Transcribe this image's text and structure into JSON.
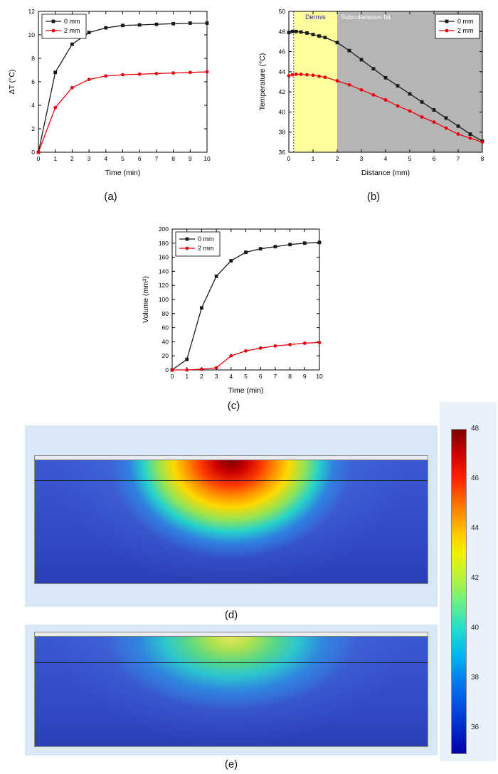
{
  "panel_labels": {
    "a": "(a)",
    "b": "(b)",
    "c": "(c)",
    "d": "(d)",
    "e": "(e)"
  },
  "colors": {
    "series_0mm": "#1a1a1a",
    "series_2mm": "#e8000d",
    "dermis_fill": "#ffff9e",
    "fat_fill": "#b5b5b5",
    "sim_background": "#d9e8f7"
  },
  "chart_data": [
    {
      "id": "chart-a",
      "type": "line",
      "title": "",
      "xlabel": "Time (min)",
      "ylabel": "ΔT (°C)",
      "xlim": [
        0,
        10
      ],
      "ylim": [
        0,
        12
      ],
      "xticks": [
        0,
        1,
        2,
        3,
        4,
        5,
        6,
        7,
        8,
        9,
        10
      ],
      "yticks": [
        0,
        2,
        4,
        6,
        8,
        10,
        12
      ],
      "legend_pos": "top-left",
      "series": [
        {
          "name": "0 mm",
          "color": "#1a1a1a",
          "marker": "square",
          "x": [
            0,
            1,
            2,
            3,
            4,
            5,
            6,
            7,
            8,
            9,
            10
          ],
          "y": [
            0,
            6.8,
            9.2,
            10.2,
            10.6,
            10.8,
            10.85,
            10.9,
            10.95,
            11.0,
            11.0
          ]
        },
        {
          "name": "2 mm",
          "color": "#e8000d",
          "marker": "circle",
          "x": [
            0,
            1,
            2,
            3,
            4,
            5,
            6,
            7,
            8,
            9,
            10
          ],
          "y": [
            0,
            3.8,
            5.5,
            6.2,
            6.5,
            6.6,
            6.65,
            6.7,
            6.75,
            6.8,
            6.85
          ]
        }
      ]
    },
    {
      "id": "chart-b",
      "type": "line",
      "title": "",
      "xlabel": "Distance (mm)",
      "ylabel": "Temperature (°C)",
      "xlim": [
        0,
        8
      ],
      "ylim": [
        36,
        50
      ],
      "xticks": [
        0,
        1,
        2,
        3,
        4,
        5,
        6,
        7,
        8
      ],
      "yticks": [
        36,
        38,
        40,
        42,
        44,
        46,
        48,
        50
      ],
      "legend_pos": "top-right",
      "regions": [
        {
          "label": "Dermis",
          "x0": 0.2,
          "x1": 2,
          "color": "#ffff9e",
          "label_color": "#2929a3"
        },
        {
          "label": "Subcutaneous fat",
          "x0": 2,
          "x1": 8,
          "color": "#b5b5b5",
          "label_color": "#ffffff",
          "label_align": "left"
        }
      ],
      "vlines": [
        {
          "x": 0.2,
          "style": "dotted"
        }
      ],
      "series": [
        {
          "name": "0 mm",
          "color": "#1a1a1a",
          "marker": "square",
          "x": [
            0,
            0.15,
            0.3,
            0.5,
            0.75,
            1,
            1.25,
            1.5,
            2,
            2.5,
            3,
            3.5,
            4,
            4.5,
            5,
            5.5,
            6,
            6.5,
            7,
            7.5,
            8
          ],
          "y": [
            47.9,
            48.0,
            48.0,
            47.95,
            47.85,
            47.7,
            47.55,
            47.4,
            46.9,
            46.1,
            45.2,
            44.3,
            43.4,
            42.6,
            41.8,
            41.0,
            40.2,
            39.4,
            38.6,
            37.8,
            37.1
          ]
        },
        {
          "name": "2 mm",
          "color": "#e8000d",
          "marker": "circle",
          "x": [
            0,
            0.15,
            0.3,
            0.5,
            0.75,
            1,
            1.25,
            1.5,
            2,
            2.5,
            3,
            3.5,
            4,
            4.5,
            5,
            5.5,
            6,
            6.5,
            7,
            7.5,
            8
          ],
          "y": [
            43.6,
            43.7,
            43.75,
            43.75,
            43.7,
            43.65,
            43.55,
            43.45,
            43.1,
            42.7,
            42.2,
            41.7,
            41.2,
            40.6,
            40.1,
            39.5,
            39.0,
            38.4,
            37.8,
            37.4,
            37.0
          ]
        }
      ]
    },
    {
      "id": "chart-c",
      "type": "line",
      "title": "",
      "xlabel": "Time (min)",
      "ylabel": "Volume (mm³)",
      "xlim": [
        0,
        10
      ],
      "ylim": [
        0,
        200
      ],
      "xticks": [
        0,
        1,
        2,
        3,
        4,
        5,
        6,
        7,
        8,
        9,
        10
      ],
      "yticks": [
        0,
        20,
        40,
        60,
        80,
        100,
        120,
        140,
        160,
        180,
        200
      ],
      "legend_pos": "top-left",
      "series": [
        {
          "name": "0 mm",
          "color": "#1a1a1a",
          "marker": "square",
          "x": [
            0,
            1,
            2,
            3,
            4,
            5,
            6,
            7,
            8,
            9,
            10
          ],
          "y": [
            0,
            15,
            88,
            133,
            155,
            167,
            172,
            175,
            178,
            180,
            181
          ]
        },
        {
          "name": "2 mm",
          "color": "#e8000d",
          "marker": "circle",
          "x": [
            0,
            1,
            2,
            3,
            4,
            5,
            6,
            7,
            8,
            9,
            10
          ],
          "y": [
            0,
            0,
            1,
            3,
            20,
            27,
            31,
            34,
            36,
            38,
            39
          ]
        }
      ]
    }
  ],
  "heatmaps": [
    {
      "id": "sim-d",
      "description": "temperature field, 0 mm case, hot spot reaching 48 °C at skin surface"
    },
    {
      "id": "sim-e",
      "description": "temperature field, 2 mm case, milder warm region around 43-44 °C"
    }
  ],
  "colorbar": {
    "min": 35,
    "max": 48,
    "ticks": [
      48,
      46,
      44,
      42,
      40,
      38,
      36
    ]
  }
}
